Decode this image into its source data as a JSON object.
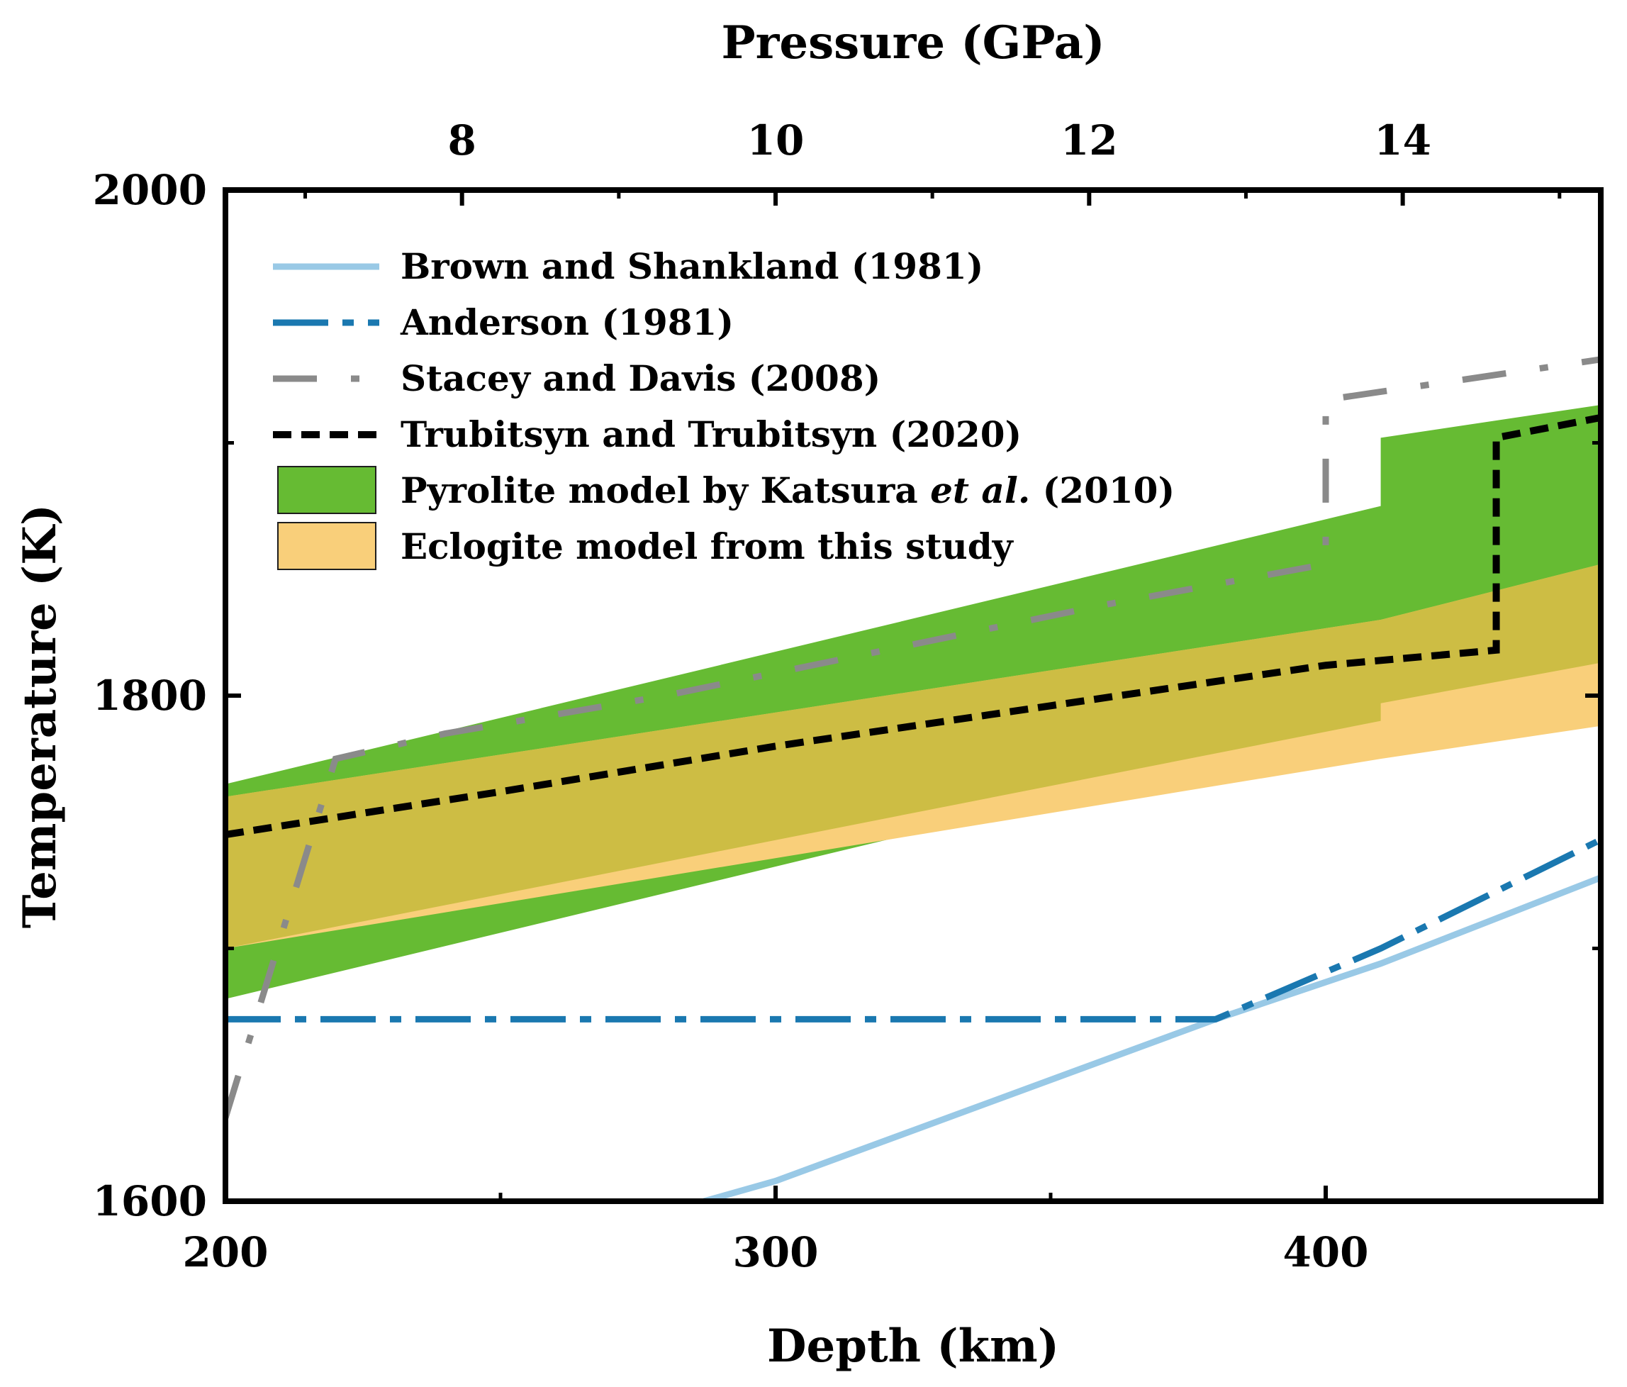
{
  "chart_data": {
    "type": "line",
    "xlabel": "Depth (km)",
    "x2label": "Pressure (GPa)",
    "ylabel": "Temperature (K)",
    "xlim": [
      200,
      450
    ],
    "ylim": [
      1600,
      2000
    ],
    "x_ticks": [
      "200",
      "300",
      "400"
    ],
    "x_tick_values": [
      200,
      300,
      400
    ],
    "y_ticks": [
      "1600",
      "1800",
      "2000"
    ],
    "y_tick_values": [
      1600,
      1800,
      2000
    ],
    "pressure_ticks": [
      "8",
      "10",
      "12",
      "14"
    ],
    "pressure_tick_depths": [
      243,
      300,
      357,
      414
    ],
    "legend_position": "top-left",
    "series": [
      {
        "name": "Brown and Shankland (1981)",
        "style": "solid",
        "color": "#99c9e6",
        "x": [
          287,
          300,
          380,
          410,
          450
        ],
        "y": [
          1600,
          1608,
          1672,
          1694,
          1728
        ]
      },
      {
        "name": "Anderson (1981)",
        "style": "dash-dot",
        "color": "#1a78b0",
        "x": [
          200,
          380,
          410,
          450
        ],
        "y": [
          1672,
          1672,
          1700,
          1743
        ]
      },
      {
        "name": "Stacey and Davis (2008)",
        "style": "long-dash-dot",
        "color": "#8a8a8a",
        "x": [
          200,
          220,
          240,
          280,
          320,
          360,
          400,
          400,
          450
        ],
        "y": [
          1633,
          1775,
          1785,
          1800,
          1818,
          1836,
          1852,
          1917,
          1933
        ]
      },
      {
        "name": "Trubitsyn and Trubitsyn (2020)",
        "style": "dotted",
        "color": "#000000",
        "x": [
          200,
          250,
          300,
          350,
          400,
          431,
          431,
          450
        ],
        "y": [
          1745,
          1762,
          1780,
          1796,
          1812,
          1818,
          1902,
          1910
        ]
      }
    ],
    "bands": [
      {
        "name": "Pyrolite model by Katsura ",
        "name_italic": "et al.",
        "name_suffix": " (2010)",
        "color": "#66bb33",
        "x": [
          200,
          410,
          410,
          450
        ],
        "upper": [
          1765,
          1875,
          1902,
          1915
        ],
        "lower": [
          1680,
          1790,
          1797,
          1813
        ]
      },
      {
        "name": "Eclogite model from this study",
        "color": "#f9cf7a",
        "x": [
          200,
          410,
          410,
          450
        ],
        "upper": [
          1760,
          1830,
          1830,
          1852
        ],
        "lower": [
          1700,
          1775,
          1775,
          1788
        ]
      }
    ],
    "overlap_color": "#cdbd44"
  }
}
